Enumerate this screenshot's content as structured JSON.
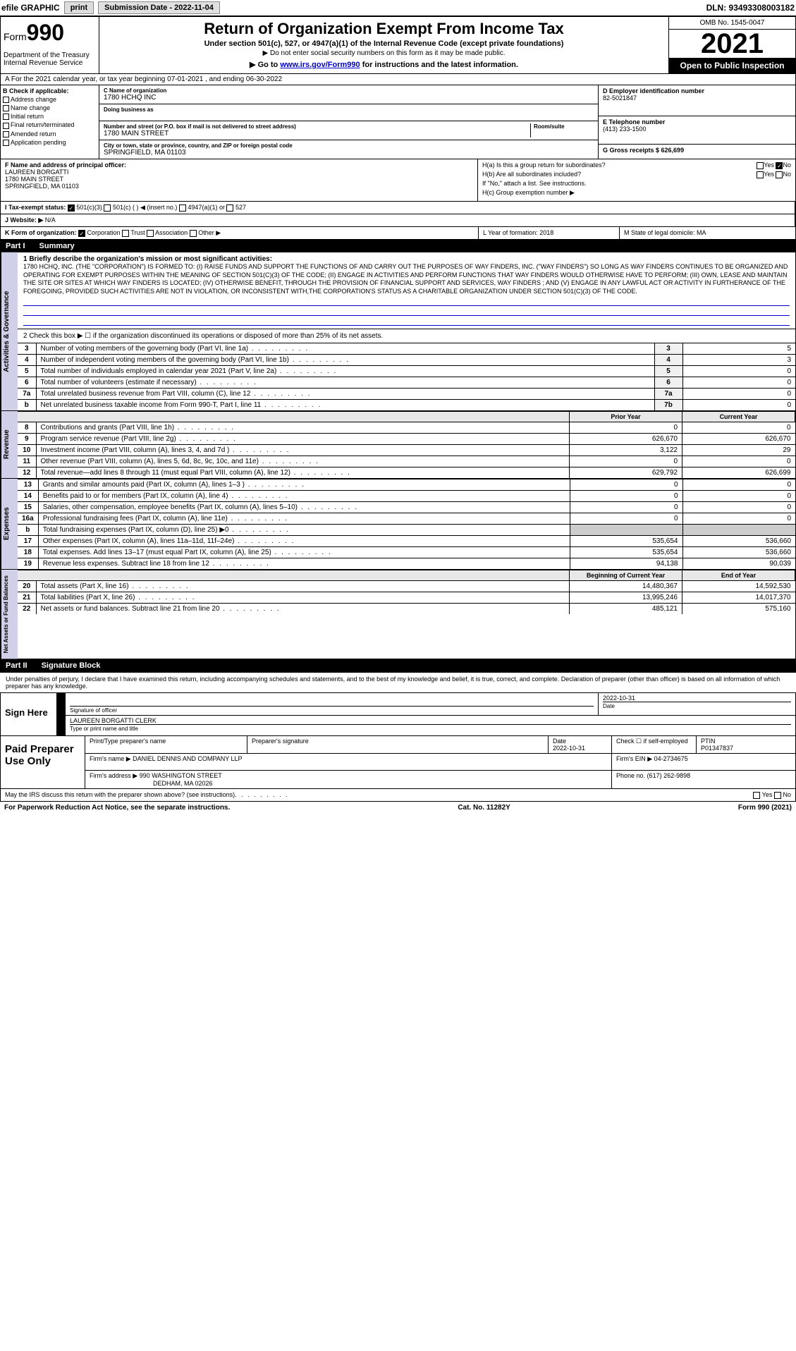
{
  "top": {
    "efile": "efile GRAPHIC",
    "print": "print",
    "submission": "Submission Date - 2022-11-04",
    "dln": "DLN: 93493308003182"
  },
  "header": {
    "form": "Form",
    "form_num": "990",
    "dept": "Department of the Treasury Internal Revenue Service",
    "title": "Return of Organization Exempt From Income Tax",
    "subtitle": "Under section 501(c), 527, or 4947(a)(1) of the Internal Revenue Code (except private foundations)",
    "sub2": "▶ Do not enter social security numbers on this form as it may be made public.",
    "goto_pre": "▶ Go to ",
    "goto_link": "www.irs.gov/Form990",
    "goto_post": " for instructions and the latest information.",
    "omb": "OMB No. 1545-0047",
    "year": "2021",
    "open": "Open to Public Inspection"
  },
  "lineA": "A  For the 2021 calendar year, or tax year beginning 07-01-2021    , and ending 06-30-2022",
  "B": {
    "label": "B Check if applicable:",
    "items": [
      "Address change",
      "Name change",
      "Initial return",
      "Final return/terminated",
      "Amended return",
      "Application pending"
    ]
  },
  "C": {
    "name_label": "C Name of organization",
    "name": "1780 HCHQ INC",
    "dba_label": "Doing business as",
    "dba": "",
    "addr_label": "Number and street (or P.O. box if mail is not delivered to street address)",
    "room_label": "Room/suite",
    "addr": "1780 MAIN STREET",
    "city_label": "City or town, state or province, country, and ZIP or foreign postal code",
    "city": "SPRINGFIELD, MA  01103"
  },
  "D": {
    "label": "D Employer identification number",
    "val": "82-5021847"
  },
  "E": {
    "label": "E Telephone number",
    "val": "(413) 233-1500"
  },
  "G": {
    "label": "G Gross receipts $ 626,699"
  },
  "F": {
    "label": "F  Name and address of principal officer:",
    "name": "LAUREEN BORGATTI",
    "addr1": "1780 MAIN STREET",
    "addr2": "SPRINGFIELD, MA  01103"
  },
  "H": {
    "a": "H(a)  Is this a group return for subordinates?",
    "b": "H(b)  Are all subordinates included?",
    "b2": "If \"No,\" attach a list. See instructions.",
    "c": "H(c)  Group exemption number ▶",
    "yes": "Yes",
    "no": "No"
  },
  "I": {
    "label": "I     Tax-exempt status:",
    "opts": [
      "501(c)(3)",
      "501(c) (  )  ◀ (insert no.)",
      "4947(a)(1) or",
      "527"
    ]
  },
  "J": {
    "label": "J    Website: ▶",
    "val": "N/A"
  },
  "K": {
    "label": "K Form of organization:",
    "opts": [
      "Corporation",
      "Trust",
      "Association",
      "Other ▶"
    ]
  },
  "L": {
    "label": "L Year of formation: 2018"
  },
  "M": {
    "label": "M State of legal domicile: MA"
  },
  "part1": {
    "header": "Part I",
    "title": "Summary",
    "side_ag": "Activities & Governance",
    "side_rev": "Revenue",
    "side_exp": "Expenses",
    "side_na": "Net Assets or Fund Balances",
    "mission_label": "1  Briefly describe the organization's mission or most significant activities:",
    "mission": "1780 HCHQ, INC. (THE \"CORPORATION\") IS FORMED TO: (I) RAISE FUNDS AND SUPPORT THE FUNCTIONS OF AND CARRY OUT THE PURPOSES OF WAY FINDERS, INC. (\"WAY FINDERS\") SO LONG AS WAY FINDERS CONTINUES TO BE ORGANIZED AND OPERATING FOR EXEMPT PURPOSES WITHIN THE MEANING OF SECTION 501(C)(3) OF THE CODE; (II) ENGAGE IN ACTIVITIES AND PERFORM FUNCTIONS THAT WAY FINDERS WOULD OTHERWISE HAVE TO PERFORM; (III) OWN, LEASE AND MAINTAIN THE SITE OR SITES AT WHICH WAY FINDERS IS LOCATED; (IV) OTHERWISE BENEFIT, THROUGH THE PROVISION OF FINANCIAL SUPPORT AND SERVICES, WAY FINDERS ; AND (V) ENGAGE IN ANY LAWFUL ACT OR ACTIVITY IN FURTHERANCE OF THE FOREGOING, PROVIDED SUCH ACTIVITIES ARE NOT IN VIOLATION, OR INCONSISTENT WITH,THE CORPORATION'S STATUS AS A CHARITABLE ORGANIZATION UNDER SECTION 501(C)(3) OF THE CODE.",
    "line2": "2   Check this box ▶ ☐ if the organization discontinued its operations or disposed of more than 25% of its net assets.",
    "rows_ag": [
      {
        "n": "3",
        "d": "Number of voting members of the governing body (Part VI, line 1a)",
        "box": "3",
        "v": "5"
      },
      {
        "n": "4",
        "d": "Number of independent voting members of the governing body (Part VI, line 1b)",
        "box": "4",
        "v": "3"
      },
      {
        "n": "5",
        "d": "Total number of individuals employed in calendar year 2021 (Part V, line 2a)",
        "box": "5",
        "v": "0"
      },
      {
        "n": "6",
        "d": "Total number of volunteers (estimate if necessary)",
        "box": "6",
        "v": "0"
      },
      {
        "n": "7a",
        "d": "Total unrelated business revenue from Part VIII, column (C), line 12",
        "box": "7a",
        "v": "0"
      },
      {
        "n": "b",
        "d": "Net unrelated business taxable income from Form 990-T, Part I, line 11",
        "box": "7b",
        "v": "0"
      }
    ],
    "py_label": "Prior Year",
    "cy_label": "Current Year",
    "rows_rev": [
      {
        "n": "8",
        "d": "Contributions and grants (Part VIII, line 1h)",
        "py": "0",
        "cy": "0"
      },
      {
        "n": "9",
        "d": "Program service revenue (Part VIII, line 2g)",
        "py": "626,670",
        "cy": "626,670"
      },
      {
        "n": "10",
        "d": "Investment income (Part VIII, column (A), lines 3, 4, and 7d )",
        "py": "3,122",
        "cy": "29"
      },
      {
        "n": "11",
        "d": "Other revenue (Part VIII, column (A), lines 5, 6d, 8c, 9c, 10c, and 11e)",
        "py": "0",
        "cy": "0"
      },
      {
        "n": "12",
        "d": "Total revenue—add lines 8 through 11 (must equal Part VIII, column (A), line 12)",
        "py": "629,792",
        "cy": "626,699"
      }
    ],
    "rows_exp": [
      {
        "n": "13",
        "d": "Grants and similar amounts paid (Part IX, column (A), lines 1–3 )",
        "py": "0",
        "cy": "0"
      },
      {
        "n": "14",
        "d": "Benefits paid to or for members (Part IX, column (A), line 4)",
        "py": "0",
        "cy": "0"
      },
      {
        "n": "15",
        "d": "Salaries, other compensation, employee benefits (Part IX, column (A), lines 5–10)",
        "py": "0",
        "cy": "0"
      },
      {
        "n": "16a",
        "d": "Professional fundraising fees (Part IX, column (A), line 11e)",
        "py": "0",
        "cy": "0"
      },
      {
        "n": "b",
        "d": "Total fundraising expenses (Part IX, column (D), line 25) ▶0",
        "py": "",
        "cy": "",
        "shaded": true
      },
      {
        "n": "17",
        "d": "Other expenses (Part IX, column (A), lines 11a–11d, 11f–24e)",
        "py": "535,654",
        "cy": "536,660"
      },
      {
        "n": "18",
        "d": "Total expenses. Add lines 13–17 (must equal Part IX, column (A), line 25)",
        "py": "535,654",
        "cy": "536,660"
      },
      {
        "n": "19",
        "d": "Revenue less expenses. Subtract line 18 from line 12",
        "py": "94,138",
        "cy": "90,039"
      }
    ],
    "boy_label": "Beginning of Current Year",
    "eoy_label": "End of Year",
    "rows_na": [
      {
        "n": "20",
        "d": "Total assets (Part X, line 16)",
        "py": "14,480,367",
        "cy": "14,592,530"
      },
      {
        "n": "21",
        "d": "Total liabilities (Part X, line 26)",
        "py": "13,995,246",
        "cy": "14,017,370"
      },
      {
        "n": "22",
        "d": "Net assets or fund balances. Subtract line 21 from line 20",
        "py": "485,121",
        "cy": "575,160"
      }
    ]
  },
  "part2": {
    "header": "Part II",
    "title": "Signature Block",
    "intro": "Under penalties of perjury, I declare that I have examined this return, including accompanying schedules and statements, and to the best of my knowledge and belief, it is true, correct, and complete. Declaration of preparer (other than officer) is based on all information of which preparer has any knowledge.",
    "sign_here": "Sign Here",
    "sig_officer": "Signature of officer",
    "date": "Date",
    "date_val": "2022-10-31",
    "officer_name": "LAUREEN BORGATTI CLERK",
    "type_name": "Type or print name and title",
    "paid_prep": "Paid Preparer Use Only",
    "pt_name": "Print/Type preparer's name",
    "prep_sig": "Preparer's signature",
    "prep_date": "Date",
    "prep_date_val": "2022-10-31",
    "check_self": "Check ☐ if self-employed",
    "ptin_label": "PTIN",
    "ptin": "P01347837",
    "firm_name_label": "Firm's name    ▶",
    "firm_name": "DANIEL DENNIS AND COMPANY LLP",
    "firm_ein_label": "Firm's EIN ▶",
    "firm_ein": "04-2734675",
    "firm_addr_label": "Firm's address ▶",
    "firm_addr1": "990 WASHINGTON STREET",
    "firm_addr2": "DEDHAM, MA  02026",
    "phone_label": "Phone no.",
    "phone": "(617) 262-9898",
    "may_irs": "May the IRS discuss this return with the preparer shown above? (see instructions)",
    "paperwork": "For Paperwork Reduction Act Notice, see the separate instructions.",
    "catno": "Cat. No. 11282Y",
    "formfoot": "Form 990 (2021)"
  }
}
